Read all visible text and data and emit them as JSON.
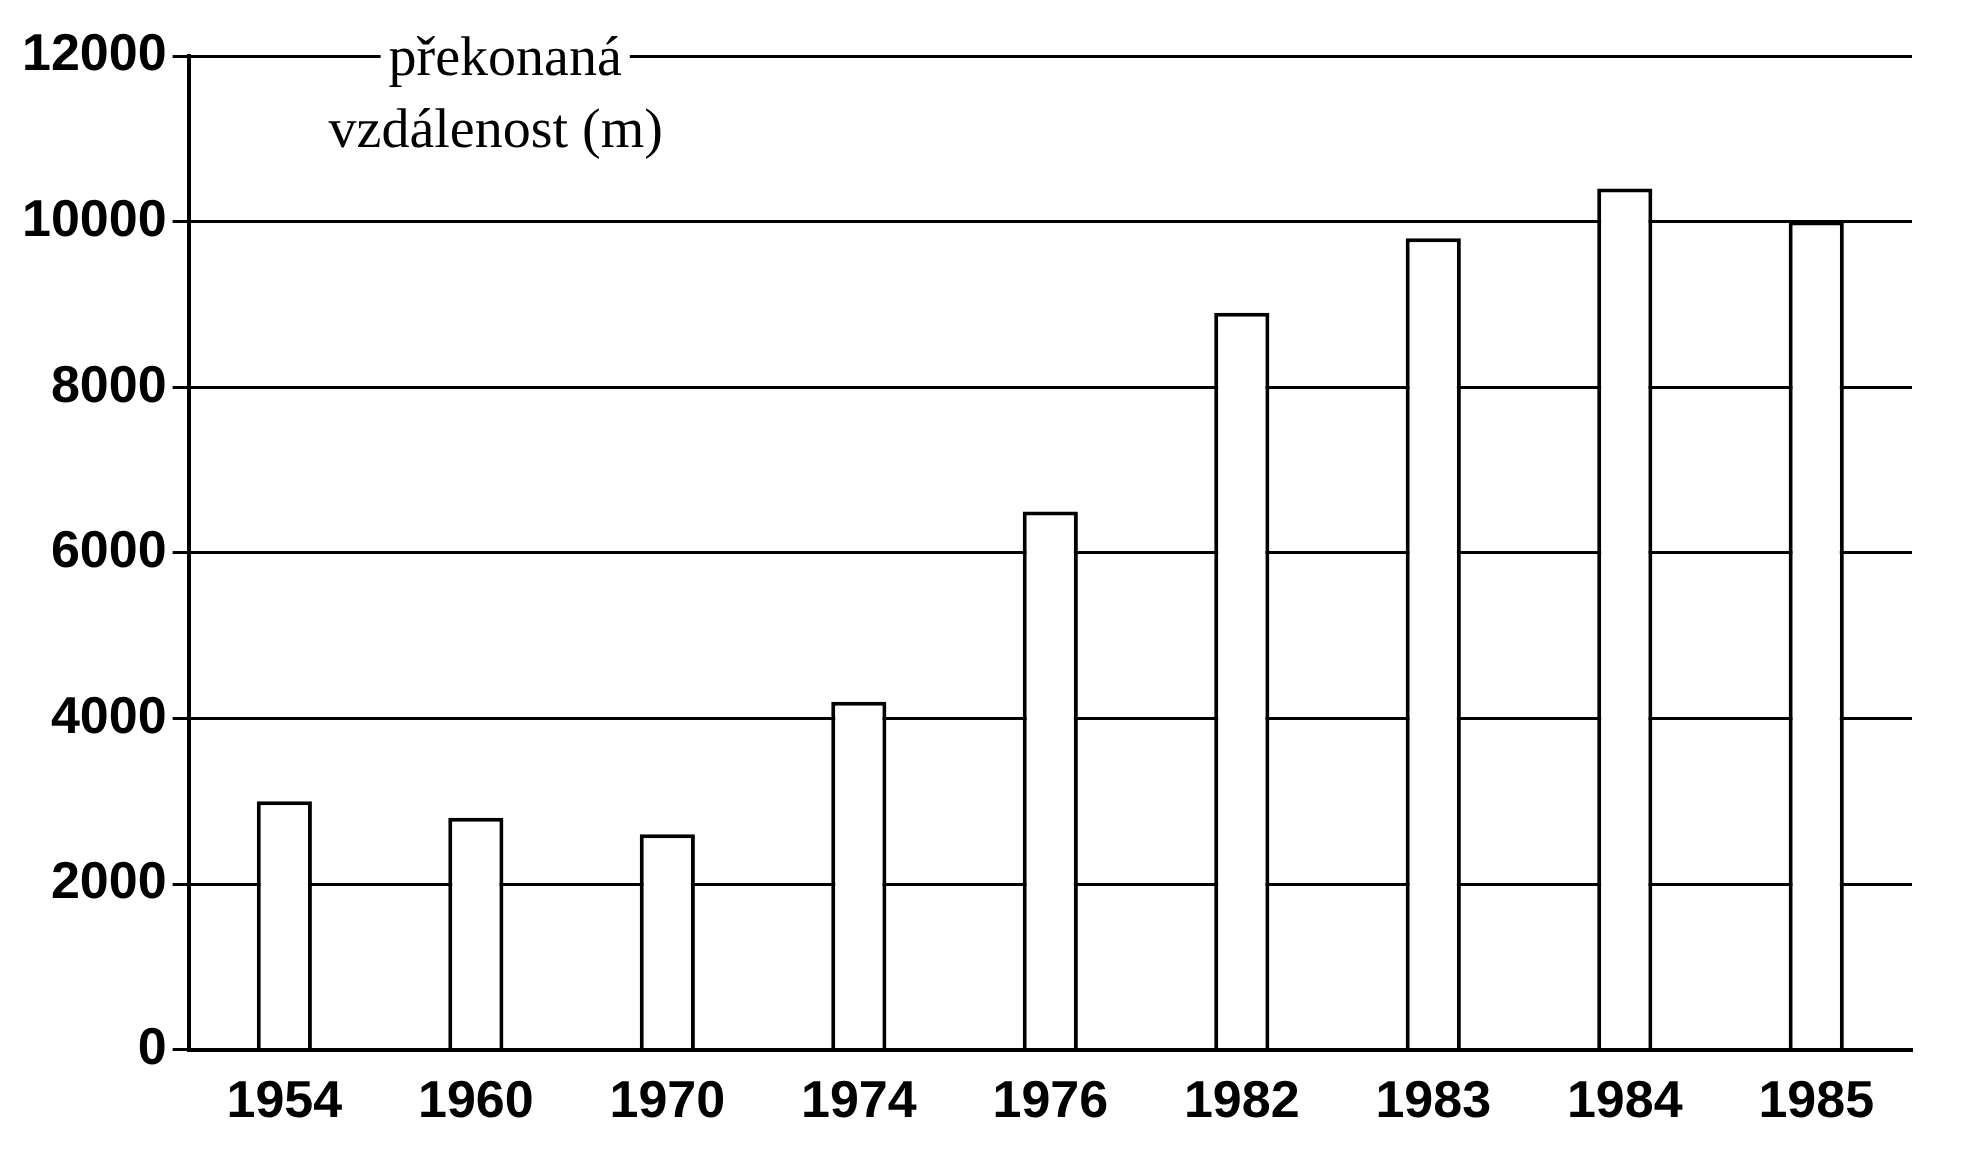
{
  "chart_data": {
    "type": "bar",
    "ylabel": "překonaná vzdálenost (m)",
    "categories": [
      "1954",
      "1960",
      "1970",
      "1974",
      "1976",
      "1982",
      "1983",
      "1984",
      "1985"
    ],
    "values": [
      3000,
      2800,
      2600,
      4200,
      6500,
      8900,
      9800,
      10400,
      10000
    ],
    "color": "#ffffff",
    "ylim": [
      0,
      12000
    ],
    "yticks": [
      0,
      2000,
      4000,
      6000,
      8000,
      10000,
      12000
    ],
    "grid": "y",
    "legend": false
  }
}
